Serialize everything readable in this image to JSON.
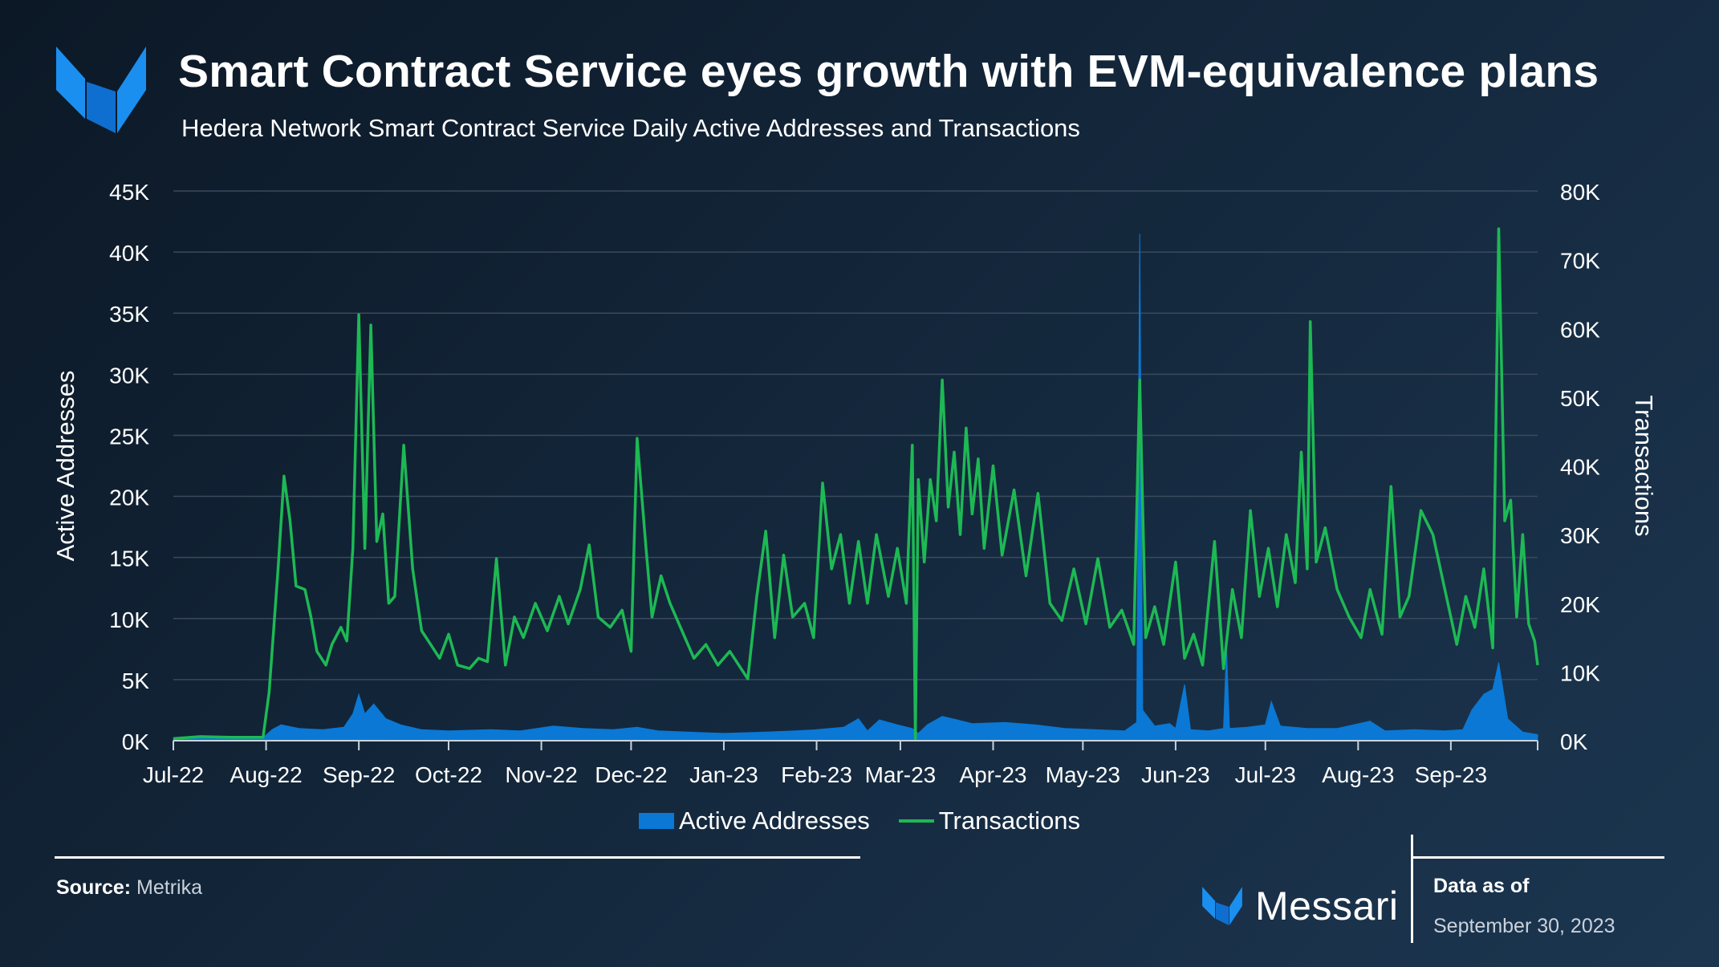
{
  "header": {
    "title": "Smart Contract Service eyes growth with EVM-equivalence plans",
    "subtitle": "Hedera Network Smart Contract Service Daily Active Addresses and Transactions"
  },
  "footer": {
    "source_label": "Source:",
    "source_value": "Metrika",
    "brand": "Messari",
    "as_of_label": "Data as of",
    "as_of_date": "September 30, 2023"
  },
  "colors": {
    "active_addresses": "#0a78d4",
    "transactions": "#1db954",
    "gridline": "#3a4a5c",
    "logo": "#1a8ff0"
  },
  "chart_data": {
    "type": "area+line",
    "title": "Smart Contract Service eyes growth with EVM-equivalence plans",
    "subtitle": "Hedera Network Smart Contract Service Daily Active Addresses and Transactions",
    "ylabel_left": "Active Addresses",
    "ylabel_right": "Transactions",
    "ylim_left": [
      0,
      45000
    ],
    "ylim_right": [
      0,
      80000
    ],
    "yticks_left": [
      "0K",
      "5K",
      "10K",
      "15K",
      "20K",
      "25K",
      "30K",
      "35K",
      "40K",
      "45K"
    ],
    "yticks_right": [
      "0K",
      "10K",
      "20K",
      "30K",
      "40K",
      "50K",
      "60K",
      "70K",
      "80K"
    ],
    "x_start_month": "Jul-22",
    "x_end": "Sep-30-23",
    "xticks": [
      "Jul-22",
      "Aug-22",
      "Sep-22",
      "Oct-22",
      "Nov-22",
      "Dec-22",
      "Jan-23",
      "Feb-23",
      "Mar-23",
      "Apr-23",
      "May-23",
      "Jun-23",
      "Jul-23",
      "Aug-23",
      "Sep-23"
    ],
    "grid": true,
    "legend_position": "bottom-center",
    "series": [
      {
        "name": "Active Addresses",
        "type": "area",
        "axis": "left",
        "points": [
          [
            "2022-07-01",
            200
          ],
          [
            "2022-07-15",
            250
          ],
          [
            "2022-07-31",
            250
          ],
          [
            "2022-08-03",
            900
          ],
          [
            "2022-08-06",
            1300
          ],
          [
            "2022-08-12",
            1000
          ],
          [
            "2022-08-20",
            900
          ],
          [
            "2022-08-27",
            1100
          ],
          [
            "2022-08-30",
            2200
          ],
          [
            "2022-09-01",
            3800
          ],
          [
            "2022-09-03",
            2200
          ],
          [
            "2022-09-06",
            3000
          ],
          [
            "2022-09-10",
            1800
          ],
          [
            "2022-09-15",
            1300
          ],
          [
            "2022-09-22",
            900
          ],
          [
            "2022-10-01",
            800
          ],
          [
            "2022-10-15",
            900
          ],
          [
            "2022-10-25",
            800
          ],
          [
            "2022-11-05",
            1200
          ],
          [
            "2022-11-15",
            1000
          ],
          [
            "2022-11-25",
            900
          ],
          [
            "2022-12-03",
            1100
          ],
          [
            "2022-12-10",
            800
          ],
          [
            "2022-12-20",
            700
          ],
          [
            "2023-01-01",
            600
          ],
          [
            "2023-01-15",
            700
          ],
          [
            "2023-01-25",
            800
          ],
          [
            "2023-02-01",
            900
          ],
          [
            "2023-02-10",
            1100
          ],
          [
            "2023-02-15",
            1800
          ],
          [
            "2023-02-18",
            800
          ],
          [
            "2023-02-22",
            1700
          ],
          [
            "2023-02-28",
            1300
          ],
          [
            "2023-03-05",
            1000
          ],
          [
            "2023-03-07",
            600
          ],
          [
            "2023-03-10",
            1300
          ],
          [
            "2023-03-15",
            2000
          ],
          [
            "2023-03-20",
            1700
          ],
          [
            "2023-03-25",
            1400
          ],
          [
            "2023-04-05",
            1500
          ],
          [
            "2023-04-15",
            1300
          ],
          [
            "2023-04-25",
            1000
          ],
          [
            "2023-05-05",
            900
          ],
          [
            "2023-05-15",
            800
          ],
          [
            "2023-05-19",
            1500
          ],
          [
            "2023-05-20",
            41500
          ],
          [
            "2023-05-21",
            2500
          ],
          [
            "2023-05-25",
            1200
          ],
          [
            "2023-05-30",
            1400
          ],
          [
            "2023-06-01",
            1000
          ],
          [
            "2023-06-04",
            4600
          ],
          [
            "2023-06-06",
            900
          ],
          [
            "2023-06-12",
            800
          ],
          [
            "2023-06-17",
            1000
          ],
          [
            "2023-06-18",
            7500
          ],
          [
            "2023-06-19",
            1000
          ],
          [
            "2023-06-25",
            1100
          ],
          [
            "2023-07-01",
            1300
          ],
          [
            "2023-07-03",
            3200
          ],
          [
            "2023-07-06",
            1200
          ],
          [
            "2023-07-15",
            1000
          ],
          [
            "2023-07-25",
            1000
          ],
          [
            "2023-08-05",
            1600
          ],
          [
            "2023-08-10",
            800
          ],
          [
            "2023-08-20",
            900
          ],
          [
            "2023-08-30",
            800
          ],
          [
            "2023-09-05",
            900
          ],
          [
            "2023-09-08",
            2500
          ],
          [
            "2023-09-12",
            3800
          ],
          [
            "2023-09-15",
            4200
          ],
          [
            "2023-09-17",
            6400
          ],
          [
            "2023-09-20",
            1800
          ],
          [
            "2023-09-25",
            700
          ],
          [
            "2023-09-30",
            500
          ]
        ]
      },
      {
        "name": "Transactions",
        "type": "line",
        "axis": "right",
        "points": [
          [
            "2022-07-01",
            300
          ],
          [
            "2022-07-10",
            600
          ],
          [
            "2022-07-20",
            500
          ],
          [
            "2022-07-31",
            500
          ],
          [
            "2022-08-02",
            7000
          ],
          [
            "2022-08-05",
            25000
          ],
          [
            "2022-08-07",
            38500
          ],
          [
            "2022-08-09",
            32000
          ],
          [
            "2022-08-11",
            22500
          ],
          [
            "2022-08-14",
            22000
          ],
          [
            "2022-08-16",
            18000
          ],
          [
            "2022-08-18",
            13000
          ],
          [
            "2022-08-21",
            11000
          ],
          [
            "2022-08-23",
            14000
          ],
          [
            "2022-08-26",
            16500
          ],
          [
            "2022-08-28",
            14500
          ],
          [
            "2022-08-30",
            28000
          ],
          [
            "2022-09-01",
            62000
          ],
          [
            "2022-09-03",
            28000
          ],
          [
            "2022-09-05",
            60500
          ],
          [
            "2022-09-07",
            29000
          ],
          [
            "2022-09-09",
            33000
          ],
          [
            "2022-09-11",
            20000
          ],
          [
            "2022-09-13",
            21000
          ],
          [
            "2022-09-16",
            43000
          ],
          [
            "2022-09-19",
            25000
          ],
          [
            "2022-09-22",
            16000
          ],
          [
            "2022-09-25",
            14000
          ],
          [
            "2022-09-28",
            12000
          ],
          [
            "2022-10-01",
            15500
          ],
          [
            "2022-10-04",
            11000
          ],
          [
            "2022-10-08",
            10500
          ],
          [
            "2022-10-11",
            12000
          ],
          [
            "2022-10-14",
            11500
          ],
          [
            "2022-10-17",
            26500
          ],
          [
            "2022-10-20",
            11000
          ],
          [
            "2022-10-23",
            18000
          ],
          [
            "2022-10-26",
            15000
          ],
          [
            "2022-10-30",
            20000
          ],
          [
            "2022-11-03",
            16000
          ],
          [
            "2022-11-07",
            21000
          ],
          [
            "2022-11-10",
            17000
          ],
          [
            "2022-11-14",
            22000
          ],
          [
            "2022-11-17",
            28500
          ],
          [
            "2022-11-20",
            18000
          ],
          [
            "2022-11-24",
            16500
          ],
          [
            "2022-11-28",
            19000
          ],
          [
            "2022-12-01",
            13000
          ],
          [
            "2022-12-03",
            44000
          ],
          [
            "2022-12-06",
            28000
          ],
          [
            "2022-12-08",
            18000
          ],
          [
            "2022-12-11",
            24000
          ],
          [
            "2022-12-14",
            20000
          ],
          [
            "2022-12-18",
            16000
          ],
          [
            "2022-12-22",
            12000
          ],
          [
            "2022-12-26",
            14000
          ],
          [
            "2022-12-30",
            11000
          ],
          [
            "2023-01-03",
            13000
          ],
          [
            "2023-01-06",
            11000
          ],
          [
            "2023-01-09",
            9000
          ],
          [
            "2023-01-12",
            21000
          ],
          [
            "2023-01-15",
            30500
          ],
          [
            "2023-01-18",
            15000
          ],
          [
            "2023-01-21",
            27000
          ],
          [
            "2023-01-24",
            18000
          ],
          [
            "2023-01-28",
            20000
          ],
          [
            "2023-01-31",
            15000
          ],
          [
            "2023-02-03",
            37500
          ],
          [
            "2023-02-06",
            25000
          ],
          [
            "2023-02-09",
            30000
          ],
          [
            "2023-02-12",
            20000
          ],
          [
            "2023-02-15",
            29000
          ],
          [
            "2023-02-18",
            20000
          ],
          [
            "2023-02-21",
            30000
          ],
          [
            "2023-02-25",
            21000
          ],
          [
            "2023-02-28",
            28000
          ],
          [
            "2023-03-03",
            20000
          ],
          [
            "2023-03-05",
            43000
          ],
          [
            "2023-03-06",
            300
          ],
          [
            "2023-03-07",
            38000
          ],
          [
            "2023-03-09",
            26000
          ],
          [
            "2023-03-11",
            38000
          ],
          [
            "2023-03-13",
            32000
          ],
          [
            "2023-03-15",
            52500
          ],
          [
            "2023-03-17",
            34000
          ],
          [
            "2023-03-19",
            42000
          ],
          [
            "2023-03-21",
            30000
          ],
          [
            "2023-03-23",
            45500
          ],
          [
            "2023-03-25",
            33000
          ],
          [
            "2023-03-27",
            41000
          ],
          [
            "2023-03-29",
            28000
          ],
          [
            "2023-04-01",
            40000
          ],
          [
            "2023-04-04",
            27000
          ],
          [
            "2023-04-08",
            36500
          ],
          [
            "2023-04-12",
            24000
          ],
          [
            "2023-04-16",
            36000
          ],
          [
            "2023-04-20",
            20000
          ],
          [
            "2023-04-24",
            17500
          ],
          [
            "2023-04-28",
            25000
          ],
          [
            "2023-05-02",
            17000
          ],
          [
            "2023-05-06",
            26500
          ],
          [
            "2023-05-10",
            16500
          ],
          [
            "2023-05-14",
            19000
          ],
          [
            "2023-05-18",
            14000
          ],
          [
            "2023-05-20",
            52500
          ],
          [
            "2023-05-22",
            15000
          ],
          [
            "2023-05-25",
            19500
          ],
          [
            "2023-05-28",
            14000
          ],
          [
            "2023-06-01",
            26000
          ],
          [
            "2023-06-04",
            12000
          ],
          [
            "2023-06-07",
            15500
          ],
          [
            "2023-06-10",
            11000
          ],
          [
            "2023-06-14",
            29000
          ],
          [
            "2023-06-17",
            10500
          ],
          [
            "2023-06-20",
            22000
          ],
          [
            "2023-06-23",
            15000
          ],
          [
            "2023-06-26",
            33500
          ],
          [
            "2023-06-29",
            21000
          ],
          [
            "2023-07-02",
            28000
          ],
          [
            "2023-07-05",
            19500
          ],
          [
            "2023-07-08",
            30000
          ],
          [
            "2023-07-11",
            23000
          ],
          [
            "2023-07-13",
            42000
          ],
          [
            "2023-07-15",
            25000
          ],
          [
            "2023-07-16",
            61000
          ],
          [
            "2023-07-18",
            26000
          ],
          [
            "2023-07-21",
            31000
          ],
          [
            "2023-07-25",
            22000
          ],
          [
            "2023-07-29",
            18000
          ],
          [
            "2023-08-02",
            15000
          ],
          [
            "2023-08-05",
            22000
          ],
          [
            "2023-08-09",
            15500
          ],
          [
            "2023-08-12",
            37000
          ],
          [
            "2023-08-15",
            18000
          ],
          [
            "2023-08-18",
            21000
          ],
          [
            "2023-08-22",
            33500
          ],
          [
            "2023-08-26",
            30000
          ],
          [
            "2023-08-30",
            22000
          ],
          [
            "2023-09-03",
            14000
          ],
          [
            "2023-09-06",
            21000
          ],
          [
            "2023-09-09",
            16500
          ],
          [
            "2023-09-12",
            25000
          ],
          [
            "2023-09-15",
            13500
          ],
          [
            "2023-09-17",
            74500
          ],
          [
            "2023-09-19",
            32000
          ],
          [
            "2023-09-21",
            35000
          ],
          [
            "2023-09-23",
            18000
          ],
          [
            "2023-09-25",
            30000
          ],
          [
            "2023-09-27",
            17000
          ],
          [
            "2023-09-29",
            14500
          ],
          [
            "2023-09-30",
            11000
          ]
        ]
      }
    ]
  }
}
